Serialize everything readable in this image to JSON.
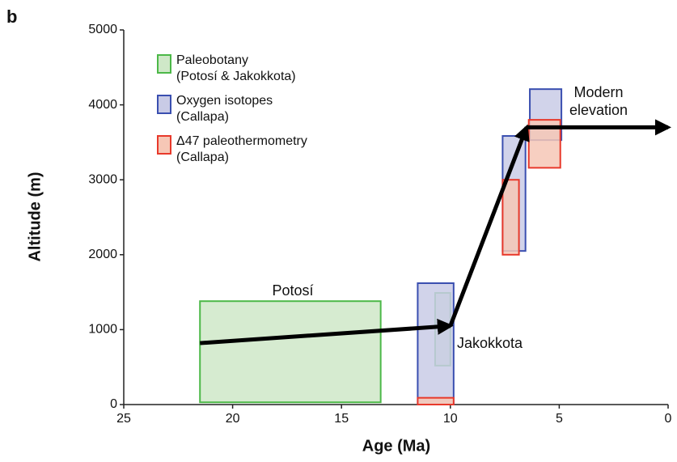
{
  "chart_data": {
    "type": "range-box",
    "panel_label": "b",
    "x_label": "Age (Ma)",
    "y_label": "Altitude (m)",
    "xlim": [
      25,
      0
    ],
    "ylim": [
      0,
      5000
    ],
    "xticks": [
      25,
      20,
      15,
      10,
      5,
      0
    ],
    "yticks": [
      0,
      1000,
      2000,
      3000,
      4000,
      5000
    ],
    "series": [
      {
        "name": "Paleobotany",
        "note": "(Potosí & Jakokkota)",
        "color": "#4cb848",
        "fill": "#cfe8c8",
        "boxes": [
          {
            "x": [
              21.5,
              13.2
            ],
            "y": [
              30,
              1380
            ]
          },
          {
            "x": [
              10.7,
              10.0
            ],
            "y": [
              520,
              1490
            ]
          }
        ]
      },
      {
        "name": "Oxygen isotopes",
        "note": "(Callapa)",
        "color": "#3a4fb0",
        "fill": "#c9cbe6",
        "boxes": [
          {
            "x": [
              11.5,
              9.85
            ],
            "y": [
              0,
              1620
            ]
          },
          {
            "x": [
              7.6,
              6.55
            ],
            "y": [
              2050,
              3585
            ]
          },
          {
            "x": [
              6.35,
              4.9
            ],
            "y": [
              3530,
              4210
            ]
          }
        ]
      },
      {
        "name": "Δ47 paleothermometry",
        "note": "(Callapa)",
        "color": "#e8392b",
        "fill": "#f6c7b6",
        "boxes": [
          {
            "x": [
              11.5,
              9.85
            ],
            "y": [
              0,
              90
            ]
          },
          {
            "x": [
              7.6,
              6.85
            ],
            "y": [
              2000,
              3000
            ]
          },
          {
            "x": [
              6.4,
              4.95
            ],
            "y": [
              3160,
              3800
            ]
          }
        ]
      }
    ],
    "arrows": [
      {
        "x": [
          21.5,
          10
        ],
        "y": [
          820,
          1050
        ]
      },
      {
        "x": [
          10,
          6.5
        ],
        "y": [
          1050,
          3700
        ]
      },
      {
        "x": [
          6.5,
          0
        ],
        "y": [
          3700,
          3700
        ]
      }
    ],
    "annotations": [
      "Potosí",
      "Jakokkota",
      "Modern",
      "elevation"
    ]
  }
}
